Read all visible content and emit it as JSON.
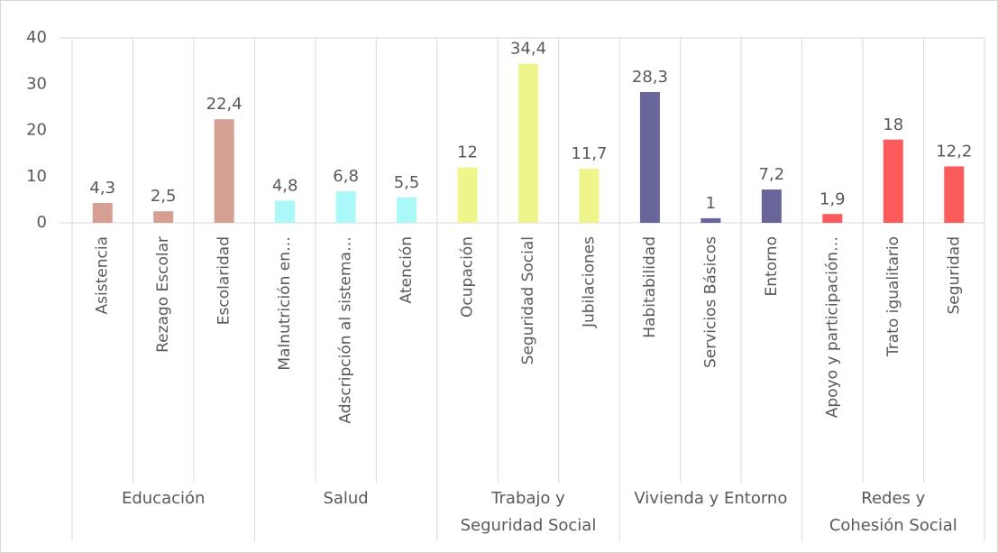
{
  "chart_data": {
    "type": "bar",
    "ylim": [
      0,
      40
    ],
    "yticks": [
      0,
      10,
      20,
      30,
      40
    ],
    "groups": [
      {
        "name": "Educación",
        "color": "#d5a093",
        "categories": [
          "Asistencia",
          "Rezago Escolar",
          "Escolaridad"
        ],
        "values": [
          4.3,
          2.5,
          22.4
        ],
        "value_labels": [
          "4,3",
          "2,5",
          "22,4"
        ]
      },
      {
        "name": "Salud",
        "color": "#aaf8f8",
        "categories": [
          "Malnutrición en…",
          "Adscripción al sistema…",
          "Atención"
        ],
        "values": [
          4.8,
          6.8,
          5.5
        ],
        "value_labels": [
          "4,8",
          "6,8",
          "5,5"
        ]
      },
      {
        "name": "Trabajo y Seguridad Social",
        "color": "#eef58a",
        "categories": [
          "Ocupación",
          "Seguridad Social",
          "Jubilaciones"
        ],
        "values": [
          12,
          34.4,
          11.7
        ],
        "value_labels": [
          "12",
          "34,4",
          "11,7"
        ]
      },
      {
        "name": "Vivienda y Entorno",
        "color": "#67659a",
        "categories": [
          "Habitabilidad",
          "Servicios Básicos",
          "Entorno"
        ],
        "values": [
          28.3,
          1,
          7.2
        ],
        "value_labels": [
          "28,3",
          "1",
          "7,2"
        ]
      },
      {
        "name": "Redes y Cohesión Social",
        "color": "#fc5b5b",
        "categories": [
          "Apoyo y participación…",
          "Trato igualitario",
          "Seguridad"
        ],
        "values": [
          1.9,
          18,
          12.2
        ],
        "value_labels": [
          "1,9",
          "18",
          "12,2"
        ]
      }
    ]
  }
}
